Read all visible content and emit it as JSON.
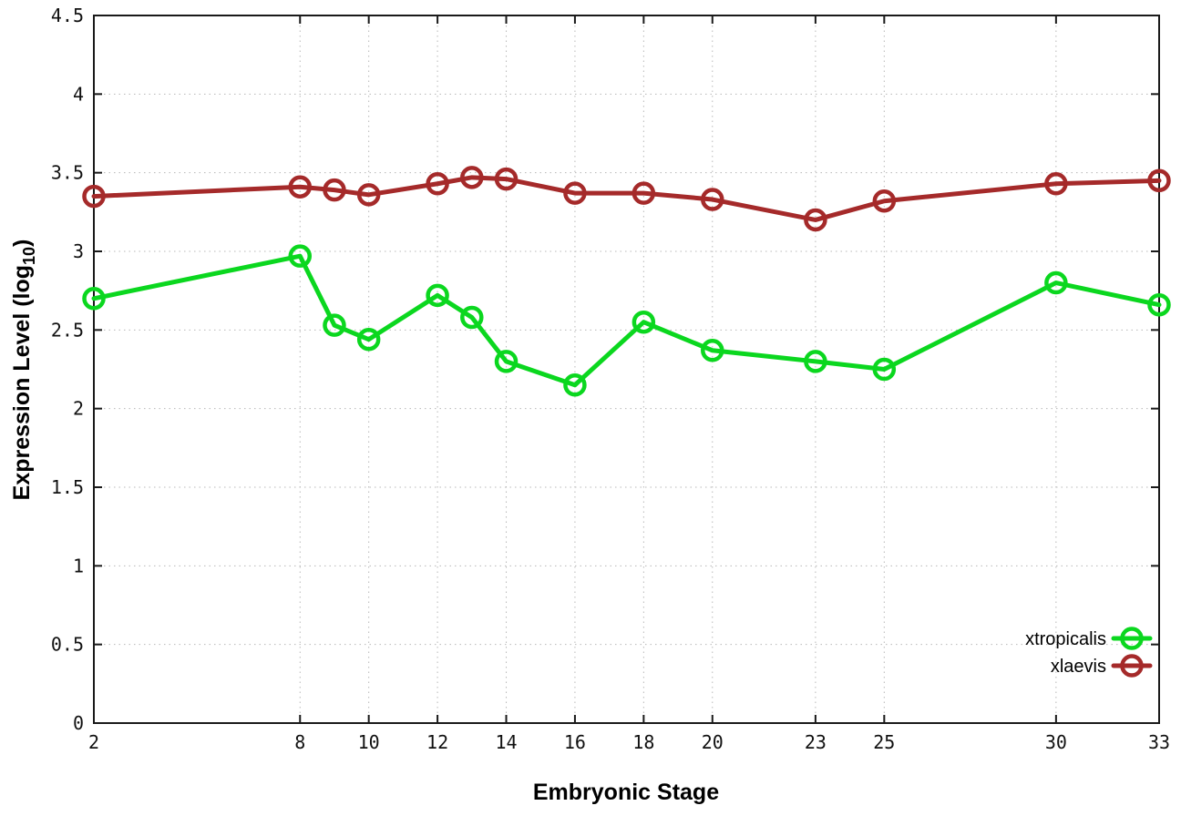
{
  "figure": {
    "background": "#ffffff",
    "border_color": "#1a1a1a",
    "grid_color": "#b8b8b8",
    "tick_color": "#1a1a1a"
  },
  "chart_data": {
    "type": "line",
    "title": "",
    "xlabel": "Embryonic Stage",
    "ylabel": "Expression Level (log10)",
    "ylabel_parts": {
      "main": "Expression Level (log",
      "sub": "10",
      "close": ")"
    },
    "xlim": [
      2,
      33
    ],
    "ylim": [
      0,
      4.5
    ],
    "grid": true,
    "grid_style": "dotted",
    "legend_position": "bottom-right",
    "x": [
      2,
      8,
      9,
      10,
      12,
      13,
      14,
      16,
      18,
      20,
      23,
      25,
      30,
      33
    ],
    "x_ticks": [
      2,
      8,
      10,
      12,
      14,
      16,
      18,
      20,
      23,
      25,
      30,
      33
    ],
    "x_tick_labels": [
      "2",
      "8",
      "10",
      "12",
      "14",
      "16",
      "18",
      "20",
      "23",
      "25",
      "30",
      "33"
    ],
    "y_ticks": [
      0,
      0.5,
      1,
      1.5,
      2,
      2.5,
      3,
      3.5,
      4,
      4.5
    ],
    "y_tick_labels": [
      "0",
      "0.5",
      "1",
      "1.5",
      "2",
      "2.5",
      "3",
      "3.5",
      "4",
      "4.5"
    ],
    "series": [
      {
        "name": "xtropicalis",
        "color": "#0bd71f",
        "marker": "open-circle",
        "values": [
          2.7,
          2.97,
          2.53,
          2.44,
          2.72,
          2.58,
          2.3,
          2.15,
          2.55,
          2.37,
          2.3,
          2.25,
          2.8,
          2.66
        ]
      },
      {
        "name": "xlaevis",
        "color": "#a52a2a",
        "marker": "open-circle",
        "values": [
          3.35,
          3.41,
          3.39,
          3.36,
          3.43,
          3.47,
          3.46,
          3.37,
          3.37,
          3.33,
          3.2,
          3.32,
          3.43,
          3.45
        ]
      }
    ]
  }
}
